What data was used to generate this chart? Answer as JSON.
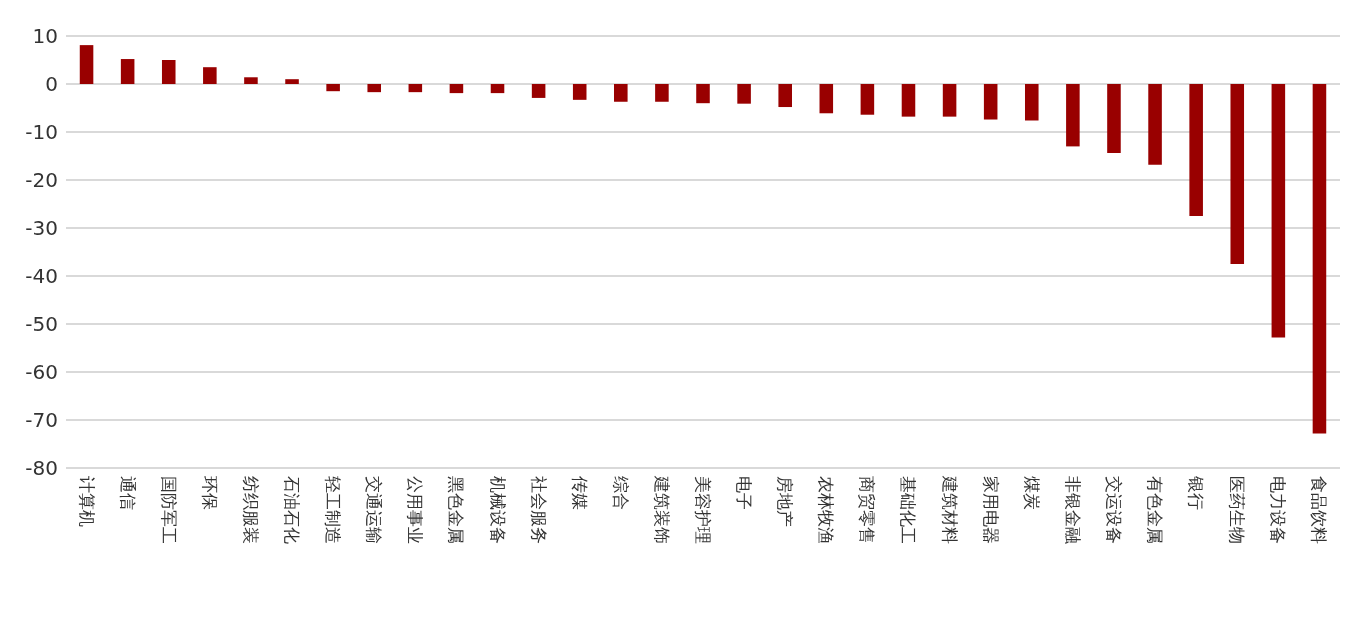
{
  "chart_data": {
    "type": "bar",
    "categories": [
      "计算机",
      "通信",
      "国防军工",
      "环保",
      "纺织服装",
      "石油石化",
      "轻工制造",
      "交通运输",
      "公用事业",
      "黑色金属",
      "机械设备",
      "社会服务",
      "传媒",
      "综合",
      "建筑装饰",
      "美容护理",
      "电子",
      "房地产",
      "农林牧渔",
      "商贸零售",
      "基础化工",
      "建筑材料",
      "家用电器",
      "煤炭",
      "非银金融",
      "交运设备",
      "有色金属",
      "银行",
      "医药生物",
      "电力设备",
      "食品饮料"
    ],
    "values": [
      8.1,
      5.2,
      5.0,
      3.5,
      1.4,
      1.0,
      -1.5,
      -1.7,
      -1.7,
      -1.9,
      -1.9,
      -2.9,
      -3.3,
      -3.7,
      -3.7,
      -4.0,
      -4.1,
      -4.8,
      -6.1,
      -6.4,
      -6.8,
      -6.8,
      -7.4,
      -7.6,
      -13.0,
      -14.4,
      -16.8,
      -27.5,
      -37.5,
      -52.8,
      -72.8
    ],
    "color": "#990000",
    "ylim": [
      -80,
      10
    ],
    "yticks": [
      -80,
      -70,
      -60,
      -50,
      -40,
      -30,
      -20,
      -10,
      0,
      10
    ],
    "grid": "y"
  }
}
